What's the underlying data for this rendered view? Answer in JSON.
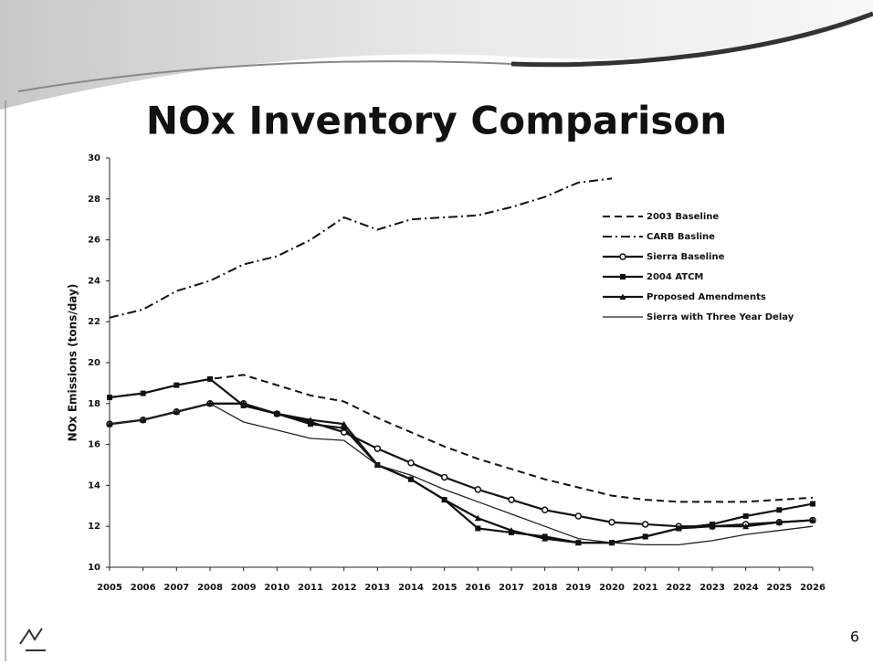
{
  "chart_data": {
    "type": "line",
    "title": "NOx Inventory Comparison",
    "y_label": "NOx Emissions (tons/day)",
    "x": [
      2005,
      2006,
      2007,
      2008,
      2009,
      2010,
      2011,
      2012,
      2013,
      2014,
      2015,
      2016,
      2017,
      2018,
      2019,
      2020,
      2021,
      2022,
      2023,
      2024,
      2025,
      2026
    ],
    "xlim": [
      2005,
      2026
    ],
    "xticks": [
      2005,
      2006,
      2007,
      2008,
      2009,
      2010,
      2011,
      2012,
      2013,
      2014,
      2015,
      2016,
      2017,
      2018,
      2019,
      2020,
      2021,
      2022,
      2023,
      2024,
      2025,
      2026
    ],
    "ylim": [
      10,
      30
    ],
    "yticks": [
      10,
      12,
      14,
      16,
      18,
      20,
      22,
      24,
      26,
      28,
      30
    ],
    "legend": "upper right",
    "series": [
      {
        "name": "2003 Baseline",
        "color": "#111111",
        "dash": "dash",
        "marker": "none",
        "values": [
          18.3,
          18.5,
          18.9,
          19.2,
          19.4,
          18.9,
          18.4,
          18.1,
          17.3,
          16.6,
          15.9,
          15.3,
          14.8,
          14.3,
          13.9,
          13.5,
          13.3,
          13.2,
          13.2,
          13.2,
          13.3,
          13.4
        ]
      },
      {
        "name": "CARB Basline",
        "color": "#111111",
        "dash": "dashdot",
        "marker": "none",
        "values": [
          22.2,
          22.6,
          23.5,
          24.0,
          24.8,
          25.2,
          26.0,
          27.1,
          26.5,
          27.0,
          27.1,
          27.2,
          27.6,
          28.1,
          28.8,
          29.0,
          null,
          null,
          null,
          null,
          null,
          null
        ]
      },
      {
        "name": "Sierra Baseline",
        "color": "#111111",
        "dash": "solid",
        "marker": "circle",
        "values": [
          17.0,
          17.2,
          17.6,
          18.0,
          18.0,
          17.5,
          17.1,
          16.6,
          15.8,
          15.1,
          14.4,
          13.8,
          13.3,
          12.8,
          12.5,
          12.2,
          12.1,
          12.0,
          12.0,
          12.1,
          12.2,
          12.3
        ]
      },
      {
        "name": "2004 ATCM",
        "color": "#111111",
        "dash": "solid",
        "marker": "square",
        "values": [
          18.3,
          18.5,
          18.9,
          19.2,
          17.9,
          17.5,
          17.0,
          16.8,
          15.0,
          14.3,
          13.3,
          11.9,
          11.7,
          11.5,
          11.2,
          11.2,
          11.5,
          11.9,
          12.1,
          12.5,
          12.8,
          13.1
        ]
      },
      {
        "name": "Proposed Amendments",
        "color": "#111111",
        "dash": "solid",
        "marker": "triangle",
        "values": [
          17.0,
          17.2,
          17.6,
          18.0,
          18.0,
          17.5,
          17.2,
          17.0,
          15.0,
          14.3,
          13.3,
          12.4,
          11.8,
          11.4,
          11.2,
          11.2,
          11.5,
          11.9,
          12.0,
          12.0,
          12.2,
          12.3
        ]
      },
      {
        "name": "Sierra with Three Year Delay",
        "color": "#222222",
        "dash": "thin",
        "marker": "none",
        "values": [
          17.0,
          17.2,
          17.6,
          18.0,
          17.1,
          16.7,
          16.3,
          16.2,
          15.0,
          14.5,
          13.8,
          13.2,
          12.6,
          12.0,
          11.4,
          11.2,
          11.1,
          11.1,
          11.3,
          11.6,
          11.8,
          12.0
        ]
      }
    ]
  },
  "slide": {
    "page_number": "6"
  }
}
